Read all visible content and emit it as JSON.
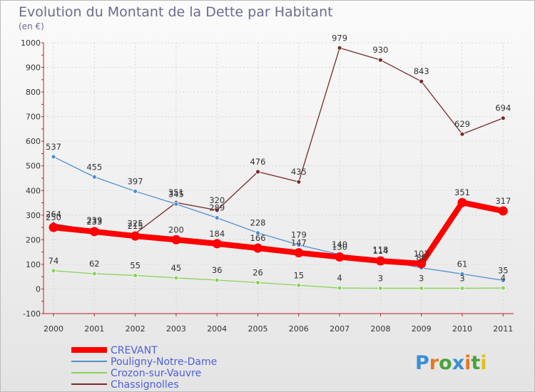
{
  "chart_data": {
    "type": "line",
    "title": "Evolution du Montant de la Dette par Habitant",
    "subtitle": "(en €)",
    "xlabel": "",
    "ylabel": "",
    "categories": [
      "2000",
      "2001",
      "2002",
      "2003",
      "2004",
      "2005",
      "2006",
      "2007",
      "2008",
      "2009",
      "2010",
      "2011"
    ],
    "y_ticks": [
      "-100",
      "0",
      "100",
      "200",
      "300",
      "400",
      "500",
      "600",
      "700",
      "800",
      "900",
      "1000"
    ],
    "ylim": [
      -100,
      1000
    ],
    "grid": true,
    "legend_position": "bottom-left",
    "series": [
      {
        "name": "CREVANT",
        "color": "#ff0000",
        "values": [
          250,
          233,
          215,
          200,
          184,
          166,
          147,
          130,
          114,
          103,
          351,
          317
        ],
        "labels": [
          "250",
          "233",
          "215",
          "200",
          "184",
          "166",
          "147",
          "130",
          "114",
          "103",
          "351",
          "317"
        ]
      },
      {
        "name": "Pouligny-Notre-Dame",
        "color": "#4f8fd0",
        "values": [
          537,
          455,
          397,
          345,
          289,
          228,
          179,
          140,
          118,
          86,
          61,
          35
        ],
        "labels": [
          "537",
          "455",
          "397",
          "345",
          "289",
          "228",
          "179",
          "140",
          "118",
          "86",
          "61",
          "35"
        ]
      },
      {
        "name": "Crozon-sur-Vauvre",
        "color": "#8ad35a",
        "values": [
          74,
          62,
          55,
          45,
          36,
          26,
          15,
          4,
          3,
          3,
          3,
          4
        ],
        "labels": [
          "74",
          "62",
          "55",
          "45",
          "36",
          "26",
          "15",
          "4",
          "3",
          "3",
          "3",
          "4"
        ]
      },
      {
        "name": "Chassignolles",
        "color": "#7a2a2a",
        "values": [
          264,
          239,
          225,
          351,
          320,
          476,
          435,
          979,
          930,
          843,
          629,
          694
        ],
        "labels": [
          "264",
          "239",
          "225",
          "351",
          "320",
          "476",
          "435",
          "979",
          "930",
          "843",
          "629",
          "694"
        ]
      }
    ]
  },
  "logo": {
    "text": "Proxiti"
  }
}
